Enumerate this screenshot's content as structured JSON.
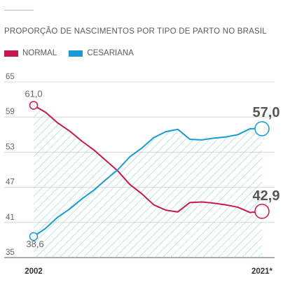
{
  "chart_data": {
    "type": "line",
    "title": "PROPORÇÃO DE NASCIMENTOS POR TIPO DE PARTO NO BRASIL",
    "x_years": [
      2002,
      2003,
      2004,
      2005,
      2006,
      2007,
      2008,
      2009,
      2010,
      2011,
      2012,
      2013,
      2014,
      2015,
      2016,
      2017,
      2018,
      2019,
      2020,
      2021
    ],
    "x_tick_labels": [
      {
        "year": 2002,
        "label": "2002"
      },
      {
        "year": 2021,
        "label": "2021*"
      }
    ],
    "ylim": [
      35,
      65
    ],
    "y_ticks": [
      {
        "value": 65,
        "label": "65"
      },
      {
        "value": 59,
        "label": "59"
      },
      {
        "value": 53,
        "label": "53"
      },
      {
        "value": 47,
        "label": "47"
      },
      {
        "value": 41,
        "label": "41"
      },
      {
        "value": 35,
        "label": "35"
      }
    ],
    "grid": true,
    "legend_placement": "top-left",
    "series": [
      {
        "name": "NORMAL",
        "color": "#c8174d",
        "values": [
          61.0,
          59.8,
          58.0,
          56.6,
          54.9,
          53.4,
          51.6,
          49.8,
          47.5,
          45.9,
          44.0,
          43.1,
          42.8,
          44.4,
          44.5,
          44.3,
          44.0,
          43.6,
          42.7,
          42.9
        ]
      },
      {
        "name": "CESARIANA",
        "color": "#199ad6",
        "values": [
          38.6,
          40.0,
          41.9,
          43.3,
          45.0,
          46.5,
          48.3,
          50.0,
          52.2,
          53.7,
          55.5,
          56.5,
          56.9,
          55.2,
          55.1,
          55.4,
          55.6,
          56.0,
          57.0,
          57.0
        ]
      }
    ],
    "annotations": {
      "normal_start": "61,0",
      "cesariana_start": "38,6",
      "cesariana_end": "57,0",
      "normal_end": "42,9"
    }
  }
}
